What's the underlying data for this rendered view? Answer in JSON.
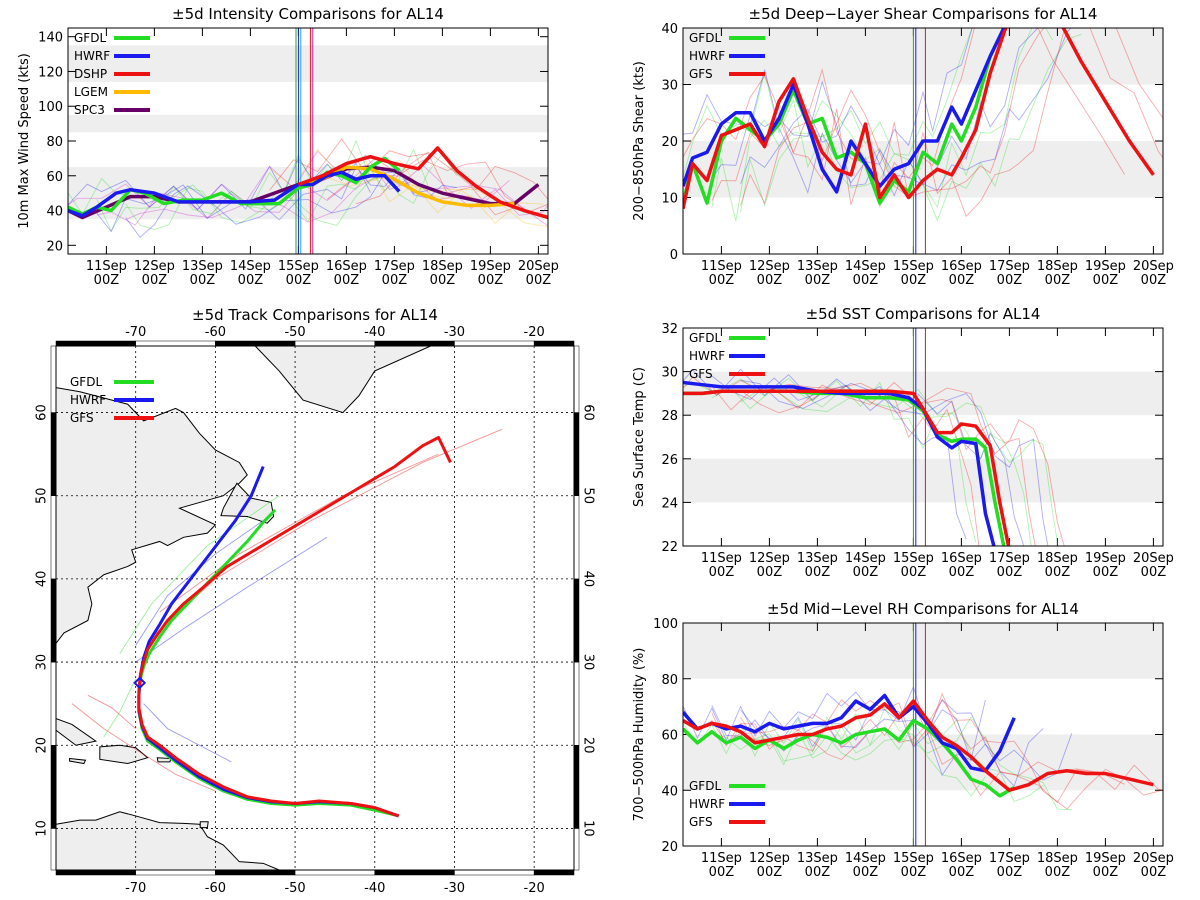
{
  "colors": {
    "GFDL": "#22dd22",
    "HWRF": "#1a1aee",
    "DSHP": "#ee1111",
    "LGEM": "#ffbb00",
    "SPC3": "#660066",
    "GFS": "#ee1111",
    "band": "#eeeeee"
  },
  "time_ticks": [
    [
      "11Sep",
      "00Z"
    ],
    [
      "12Sep",
      "00Z"
    ],
    [
      "13Sep",
      "00Z"
    ],
    [
      "14Sep",
      "00Z"
    ],
    [
      "15Sep",
      "00Z"
    ],
    [
      "16Sep",
      "00Z"
    ],
    [
      "17Sep",
      "00Z"
    ],
    [
      "18Sep",
      "00Z"
    ],
    [
      "19Sep",
      "00Z"
    ],
    [
      "20Sep",
      "00Z"
    ]
  ],
  "chart_data": [
    {
      "id": "intensity",
      "type": "line",
      "title": "±5d Intensity Comparisons for AL14",
      "ylabel": "10m Max Wind Speed (kts)",
      "xlim": [
        10.2,
        20.2
      ],
      "ylim": [
        15,
        145
      ],
      "yticks": [
        "20",
        "40",
        "60",
        "80",
        "100",
        "120",
        "140"
      ],
      "bands": [
        [
          35,
          65
        ],
        [
          85,
          95
        ],
        [
          114,
          135
        ]
      ],
      "vlines": [
        [
          14.95,
          "#22aa22"
        ],
        [
          15.0,
          "#1a1aee"
        ],
        [
          15.05,
          "#22aaaa"
        ],
        [
          15.25,
          "#ee1111"
        ],
        [
          15.3,
          "#aa22aa"
        ]
      ],
      "legend": [
        "GFDL",
        "HWRF",
        "DSHP",
        "LGEM",
        "SPC3"
      ],
      "series": [
        {
          "name": "SPC3",
          "x": [
            10.2,
            10.5,
            11.0,
            11.5,
            12.0,
            12.5,
            13.0,
            13.5,
            14.0,
            14.5,
            15.0,
            15.5,
            16.0,
            16.5,
            17.0,
            17.5,
            18.0,
            18.5,
            19.0,
            19.5,
            20.0
          ],
          "y": [
            40,
            36,
            42,
            48,
            48,
            45,
            45,
            45,
            45,
            50,
            55,
            58,
            64,
            65,
            63,
            55,
            50,
            47,
            44,
            44,
            55
          ]
        },
        {
          "name": "LGEM",
          "x": [
            15.0,
            15.5,
            16.0,
            16.5,
            17.0,
            17.5,
            18.0,
            18.5,
            19.0,
            19.5
          ],
          "y": [
            55,
            58,
            65,
            64,
            58,
            50,
            45,
            43,
            43,
            44
          ]
        },
        {
          "name": "GFDL",
          "x": [
            10.2,
            10.5,
            10.8,
            11.1,
            11.5,
            11.8,
            12.2,
            12.6,
            13.0,
            13.4,
            13.8,
            14.2,
            14.6,
            15.0,
            15.3,
            15.6,
            15.9,
            16.2,
            16.5,
            16.8,
            17.1
          ],
          "y": [
            42,
            38,
            42,
            40,
            52,
            50,
            44,
            46,
            46,
            50,
            44,
            44,
            44,
            53,
            55,
            62,
            60,
            56,
            65,
            70,
            63
          ]
        },
        {
          "name": "HWRF",
          "x": [
            10.2,
            10.5,
            10.8,
            11.2,
            11.5,
            12.0,
            12.5,
            13.0,
            13.5,
            14.0,
            14.5,
            15.0,
            15.3,
            15.6,
            15.9,
            16.2,
            16.5,
            16.8,
            17.1
          ],
          "y": [
            40,
            37,
            42,
            50,
            52,
            50,
            45,
            45,
            45,
            45,
            46,
            55,
            55,
            60,
            62,
            58,
            60,
            60,
            51
          ]
        },
        {
          "name": "DSHP",
          "x": [
            15.0,
            15.5,
            16.0,
            16.5,
            17.0,
            17.5,
            17.9,
            18.3,
            18.7,
            19.2,
            19.7,
            20.2
          ],
          "y": [
            55,
            60,
            67,
            71,
            67,
            64,
            76,
            63,
            54,
            45,
            40,
            36
          ]
        }
      ]
    },
    {
      "id": "shear",
      "type": "line",
      "title": "±5d Deep−Layer Shear Comparisons for AL14",
      "ylabel": "200−850hPa Shear (kts)",
      "xlim": [
        10.2,
        20.2
      ],
      "ylim": [
        0,
        40
      ],
      "yticks": [
        "0",
        "10",
        "20",
        "30",
        "40"
      ],
      "bands": [
        [
          10,
          20
        ],
        [
          30,
          40
        ]
      ],
      "vlines": [
        [
          15.0,
          "#22aa22"
        ],
        [
          15.05,
          "#1a1aee"
        ],
        [
          15.25,
          "#ee1111"
        ]
      ],
      "legend": [
        "GFDL",
        "HWRF",
        "GFS"
      ],
      "series": [
        {
          "name": "GFDL",
          "x": [
            10.2,
            10.4,
            10.7,
            11.0,
            11.3,
            11.6,
            11.9,
            12.2,
            12.5,
            12.8,
            13.1,
            13.4,
            13.7,
            14.0,
            14.3,
            14.6,
            14.9,
            15.2,
            15.5,
            15.8,
            16.0,
            16.3,
            16.6,
            17.0,
            17.3
          ],
          "y": [
            9,
            16,
            9,
            20,
            24,
            22,
            20,
            23,
            29,
            23,
            24,
            17,
            18,
            16,
            9,
            13,
            11,
            18,
            16,
            23,
            20,
            26,
            35,
            42,
            41
          ]
        },
        {
          "name": "HWRF",
          "x": [
            10.2,
            10.4,
            10.7,
            11.0,
            11.3,
            11.6,
            11.9,
            12.2,
            12.5,
            12.8,
            13.1,
            13.4,
            13.7,
            14.0,
            14.3,
            14.6,
            14.9,
            15.2,
            15.5,
            15.8,
            16.0,
            16.3,
            16.6,
            17.0,
            17.3
          ],
          "y": [
            12,
            17,
            18,
            23,
            25,
            25,
            20,
            24,
            30,
            23,
            15,
            11,
            20,
            16,
            12,
            15,
            16,
            20,
            20,
            26,
            23,
            29,
            35,
            42,
            42
          ]
        },
        {
          "name": "GFS",
          "x": [
            10.2,
            10.4,
            10.7,
            11.0,
            11.3,
            11.6,
            11.9,
            12.2,
            12.5,
            12.8,
            13.1,
            13.4,
            13.7,
            14.0,
            14.3,
            14.6,
            14.9,
            15.2,
            15.5,
            15.8,
            16.0,
            16.3,
            16.6,
            17.0,
            17.5,
            18.0,
            18.5,
            19.0,
            19.5,
            20.0
          ],
          "y": [
            8,
            16,
            13,
            21,
            22,
            23,
            19,
            27,
            31,
            24,
            18,
            15,
            14,
            23,
            10,
            14,
            10,
            13,
            15,
            14,
            17,
            22,
            32,
            42,
            43,
            42,
            34,
            27,
            20,
            14
          ]
        }
      ]
    },
    {
      "id": "sst",
      "type": "line",
      "title": "±5d SST Comparisons for AL14",
      "ylabel": "Sea Surface Temp (C)",
      "xlim": [
        10.2,
        20.2
      ],
      "ylim": [
        22,
        32
      ],
      "yticks": [
        "22",
        "24",
        "26",
        "28",
        "30",
        "32"
      ],
      "bands": [
        [
          24,
          26
        ],
        [
          28,
          30
        ]
      ],
      "vlines": [
        [
          15.0,
          "#22aa22"
        ],
        [
          15.05,
          "#1a1aee"
        ],
        [
          15.25,
          "#ee1111"
        ]
      ],
      "legend": [
        "GFDL",
        "HWRF",
        "GFS"
      ],
      "series": [
        {
          "name": "GFDL",
          "x": [
            10.2,
            10.6,
            11.0,
            11.5,
            12.0,
            12.5,
            13.0,
            13.5,
            14.0,
            14.5,
            14.9,
            15.2,
            15.5,
            15.8,
            16.0,
            16.3,
            16.5,
            16.7,
            16.9
          ],
          "y": [
            29.0,
            29.0,
            29.1,
            29.1,
            29.1,
            29.1,
            29.0,
            29.0,
            28.8,
            28.8,
            28.7,
            28.2,
            27.1,
            26.8,
            26.9,
            26.9,
            26.5,
            24.0,
            21.8
          ]
        },
        {
          "name": "HWRF",
          "x": [
            10.2,
            10.6,
            11.0,
            11.5,
            12.0,
            12.5,
            13.0,
            13.5,
            14.0,
            14.5,
            14.9,
            15.2,
            15.5,
            15.8,
            16.0,
            16.3,
            16.5,
            16.7
          ],
          "y": [
            29.5,
            29.4,
            29.3,
            29.3,
            29.3,
            29.3,
            29.1,
            29.0,
            29.0,
            29.0,
            28.8,
            28.3,
            27.0,
            26.5,
            26.8,
            26.7,
            23.5,
            21.8
          ]
        },
        {
          "name": "GFS",
          "x": [
            10.2,
            10.6,
            11.0,
            11.5,
            12.0,
            12.5,
            13.0,
            13.5,
            14.0,
            14.5,
            15.0,
            15.2,
            15.5,
            15.8,
            16.0,
            16.3,
            16.6,
            16.8,
            17.0
          ],
          "y": [
            29.0,
            29.0,
            29.1,
            29.1,
            29.1,
            29.1,
            29.1,
            29.1,
            29.1,
            29.1,
            29.0,
            28.3,
            27.2,
            27.2,
            27.6,
            27.5,
            26.6,
            24.0,
            21.8
          ]
        }
      ]
    },
    {
      "id": "rh",
      "type": "line",
      "title": "±5d Mid−Level RH Comparisons for AL14",
      "ylabel": "700−500hPa Humidity (%)",
      "xlim": [
        10.2,
        20.2
      ],
      "ylim": [
        20,
        100
      ],
      "yticks": [
        "20",
        "40",
        "60",
        "80",
        "100"
      ],
      "bands": [
        [
          40,
          60
        ],
        [
          80,
          100
        ]
      ],
      "vlines": [
        [
          15.0,
          "#22aa22"
        ],
        [
          15.05,
          "#1a1aee"
        ],
        [
          15.25,
          "#ee1111"
        ]
      ],
      "legend": [
        "GFDL",
        "HWRF",
        "GFS"
      ],
      "series": [
        {
          "name": "GFDL",
          "x": [
            10.2,
            10.5,
            10.8,
            11.1,
            11.4,
            11.7,
            12.0,
            12.3,
            12.6,
            12.9,
            13.2,
            13.5,
            13.8,
            14.1,
            14.4,
            14.7,
            15.0,
            15.3,
            15.6,
            15.9,
            16.2,
            16.5,
            16.8,
            17.1
          ],
          "y": [
            62,
            57,
            61,
            57,
            59,
            55,
            58,
            55,
            58,
            60,
            59,
            57,
            60,
            61,
            62,
            58,
            65,
            62,
            57,
            51,
            44,
            42,
            38,
            41
          ]
        },
        {
          "name": "HWRF",
          "x": [
            10.2,
            10.5,
            10.8,
            11.1,
            11.4,
            11.7,
            12.0,
            12.3,
            12.6,
            12.9,
            13.2,
            13.5,
            13.8,
            14.1,
            14.4,
            14.7,
            15.0,
            15.3,
            15.6,
            15.9,
            16.2,
            16.5,
            16.8,
            17.1
          ],
          "y": [
            68,
            62,
            64,
            62,
            63,
            61,
            64,
            62,
            63,
            64,
            64,
            66,
            72,
            69,
            74,
            66,
            70,
            64,
            57,
            55,
            48,
            47,
            54,
            66
          ]
        },
        {
          "name": "GFS",
          "x": [
            10.2,
            10.5,
            10.8,
            11.1,
            11.4,
            11.7,
            12.0,
            12.3,
            12.6,
            12.9,
            13.2,
            13.5,
            13.8,
            14.1,
            14.4,
            14.7,
            15.0,
            15.3,
            15.6,
            15.9,
            16.2,
            16.5,
            17.0,
            17.4,
            17.8,
            18.2,
            18.6,
            19.0,
            19.5,
            20.0
          ],
          "y": [
            65,
            62,
            64,
            63,
            61,
            57,
            58,
            59,
            60,
            60,
            62,
            63,
            66,
            67,
            71,
            66,
            72,
            65,
            59,
            56,
            52,
            47,
            40,
            42,
            46,
            47,
            46,
            46,
            44,
            42
          ]
        }
      ]
    },
    {
      "id": "track",
      "type": "line",
      "title": "±5d Track Comparisons for AL14",
      "xlim": [
        -80,
        -15
      ],
      "ylim": [
        5,
        68
      ],
      "xticks": [
        "-70",
        "-60",
        "-50",
        "-40",
        "-30",
        "-20"
      ],
      "yticks": [
        "10",
        "20",
        "30",
        "40",
        "50",
        "60"
      ],
      "legend": [
        "GFDL",
        "HWRF",
        "GFS"
      ],
      "storm_position": {
        "lon": -69.5,
        "lat": 27.5
      },
      "series": [
        {
          "name": "GFDL",
          "lon": [
            -37,
            -40,
            -43,
            -47,
            -50,
            -53,
            -56,
            -59,
            -62,
            -65,
            -67,
            -68.5,
            -69.2,
            -69.6,
            -69.6,
            -69.4,
            -69.0,
            -68.3,
            -67.0,
            -65.5,
            -63.5,
            -61.0,
            -58.5,
            -56.0,
            -54.0,
            -52.5
          ],
          "lat": [
            11.5,
            12.2,
            12.8,
            13.0,
            12.8,
            13.0,
            13.5,
            14.5,
            16.0,
            18.0,
            19.5,
            20.5,
            22.0,
            24.0,
            26.0,
            28.0,
            29.5,
            31.0,
            33.0,
            35.0,
            37.0,
            39.5,
            42.0,
            44.5,
            46.8,
            48.3
          ]
        },
        {
          "name": "HWRF",
          "lon": [
            -37,
            -40,
            -43,
            -47,
            -50,
            -53,
            -56,
            -59,
            -62,
            -65,
            -67,
            -68.5,
            -69.2,
            -69.6,
            -69.6,
            -69.4,
            -69.0,
            -68.3,
            -67.0,
            -65.5,
            -63.5,
            -61.5,
            -59.5,
            -57.5,
            -55.5,
            -54.0
          ],
          "lat": [
            11.5,
            12.5,
            13.0,
            13.2,
            13.0,
            13.2,
            13.7,
            14.7,
            16.2,
            18.2,
            19.7,
            20.8,
            22.3,
            24.2,
            26.0,
            28.5,
            30.5,
            32.5,
            34.5,
            37.0,
            39.5,
            42.0,
            44.5,
            47.0,
            50.0,
            53.5
          ]
        },
        {
          "name": "GFS",
          "lon": [
            -37,
            -40,
            -43,
            -47,
            -50,
            -53,
            -56,
            -59,
            -62,
            -65,
            -67,
            -68.5,
            -69.2,
            -69.6,
            -69.6,
            -69.4,
            -69.0,
            -68.5,
            -67.5,
            -66.0,
            -64.0,
            -61.5,
            -58.5,
            -55.0,
            -51.5,
            -48.0,
            -44.5,
            -41.0,
            -37.5,
            -34.0,
            -32.0,
            -30.5
          ],
          "lat": [
            11.5,
            12.5,
            13.0,
            13.3,
            13.0,
            13.3,
            13.8,
            15.0,
            16.5,
            18.5,
            20.0,
            21.0,
            22.5,
            24.5,
            26.5,
            28.5,
            30.0,
            31.5,
            33.0,
            35.0,
            37.0,
            39.0,
            41.5,
            43.5,
            45.5,
            47.5,
            49.5,
            51.5,
            53.5,
            56.0,
            57.0,
            54.0
          ]
        }
      ]
    }
  ]
}
